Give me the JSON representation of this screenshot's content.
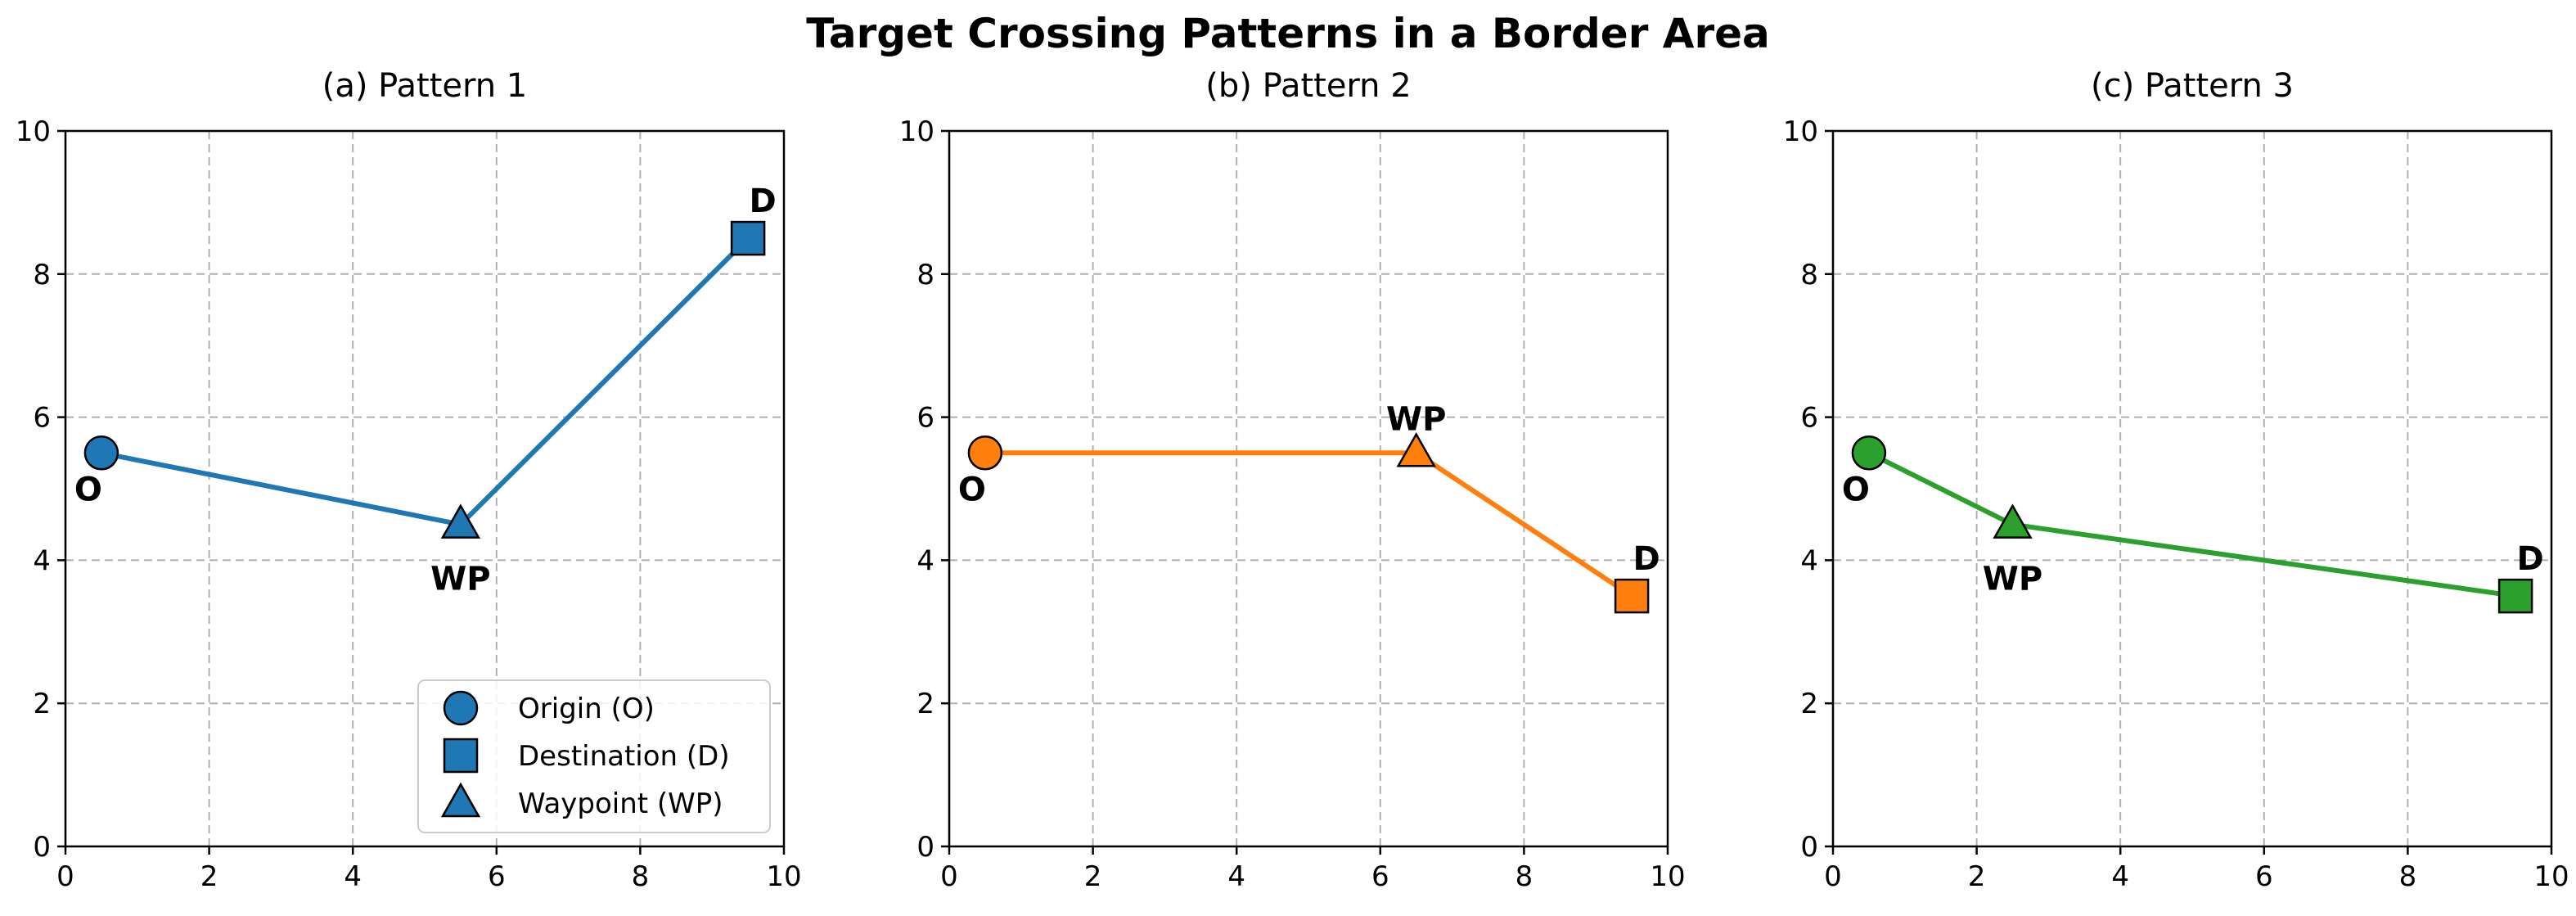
{
  "figure": {
    "title": "Target Crossing Patterns in a Border Area"
  },
  "chart_data": [
    {
      "type": "line",
      "title": "(a) Pattern 1",
      "xlim": [
        0,
        10
      ],
      "ylim": [
        0,
        10
      ],
      "xticks": [
        "0",
        "2",
        "4",
        "6",
        "8",
        "10"
      ],
      "yticks": [
        "0",
        "2",
        "4",
        "6",
        "8",
        "10"
      ],
      "grid": true,
      "color": "#1f77b4",
      "path": [
        [
          0.5,
          5.5
        ],
        [
          5.5,
          4.5
        ],
        [
          9.5,
          8.5
        ]
      ],
      "points": [
        {
          "role": "origin",
          "x": 0.5,
          "y": 5.5,
          "label": "O",
          "marker": "circle"
        },
        {
          "role": "waypoint",
          "x": 5.5,
          "y": 4.5,
          "label": "WP",
          "marker": "triangle"
        },
        {
          "role": "destination",
          "x": 9.5,
          "y": 8.5,
          "label": "D",
          "marker": "square"
        }
      ],
      "legend": {
        "placement": "lower-right",
        "entries": [
          {
            "marker": "circle",
            "label": "Origin (O)"
          },
          {
            "marker": "square",
            "label": "Destination (D)"
          },
          {
            "marker": "triangle",
            "label": "Waypoint (WP)"
          }
        ]
      }
    },
    {
      "type": "line",
      "title": "(b) Pattern 2",
      "xlim": [
        0,
        10
      ],
      "ylim": [
        0,
        10
      ],
      "xticks": [
        "0",
        "2",
        "4",
        "6",
        "8",
        "10"
      ],
      "yticks": [
        "0",
        "2",
        "4",
        "6",
        "8",
        "10"
      ],
      "grid": true,
      "color": "#ff7f0e",
      "path": [
        [
          0.5,
          5.5
        ],
        [
          6.5,
          5.5
        ],
        [
          9.5,
          3.5
        ]
      ],
      "points": [
        {
          "role": "origin",
          "x": 0.5,
          "y": 5.5,
          "label": "O",
          "marker": "circle"
        },
        {
          "role": "waypoint",
          "x": 6.5,
          "y": 5.5,
          "label": "WP",
          "marker": "triangle"
        },
        {
          "role": "destination",
          "x": 9.5,
          "y": 3.5,
          "label": "D",
          "marker": "square"
        }
      ]
    },
    {
      "type": "line",
      "title": "(c) Pattern 3",
      "xlim": [
        0,
        10
      ],
      "ylim": [
        0,
        10
      ],
      "xticks": [
        "0",
        "2",
        "4",
        "6",
        "8",
        "10"
      ],
      "yticks": [
        "0",
        "2",
        "4",
        "6",
        "8",
        "10"
      ],
      "grid": true,
      "color": "#2ca02c",
      "path": [
        [
          0.5,
          5.5
        ],
        [
          2.5,
          4.5
        ],
        [
          9.5,
          3.5
        ]
      ],
      "points": [
        {
          "role": "origin",
          "x": 0.5,
          "y": 5.5,
          "label": "O",
          "marker": "circle"
        },
        {
          "role": "waypoint",
          "x": 2.5,
          "y": 4.5,
          "label": "WP",
          "marker": "triangle"
        },
        {
          "role": "destination",
          "x": 9.5,
          "y": 3.5,
          "label": "D",
          "marker": "square"
        }
      ]
    }
  ]
}
